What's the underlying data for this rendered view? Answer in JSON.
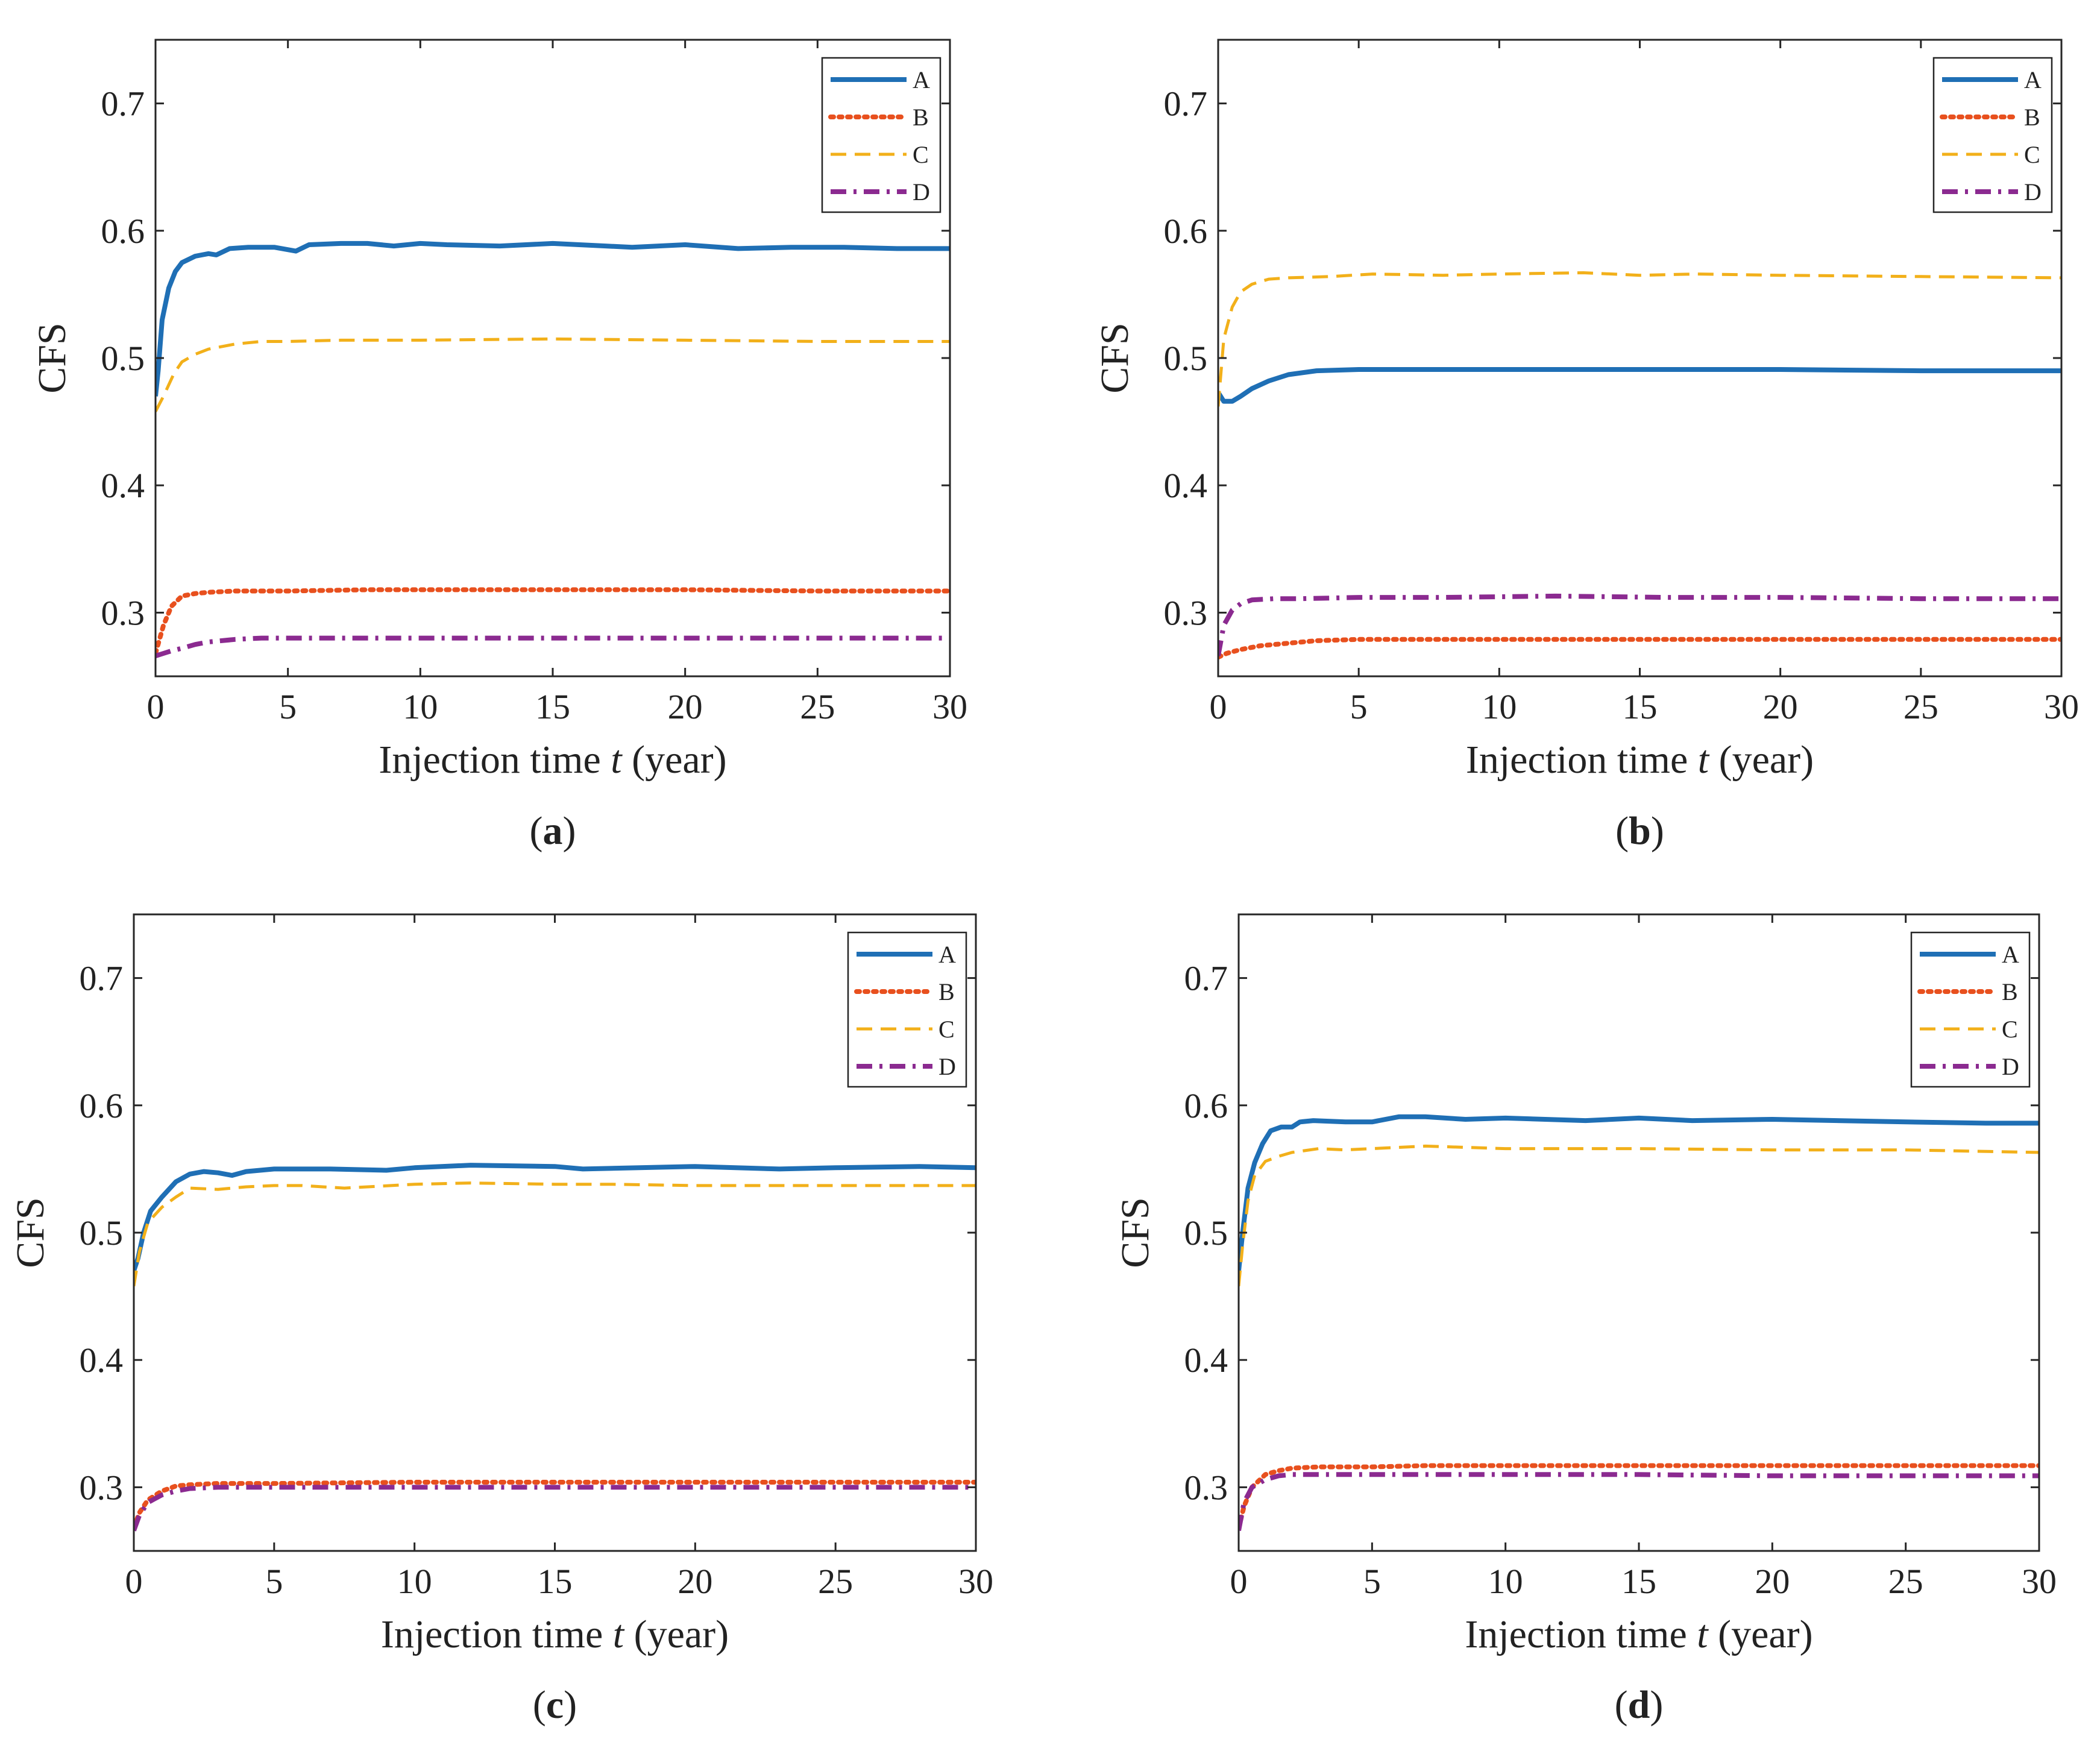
{
  "chart_data": [
    {
      "type": "line",
      "panel_label": "a",
      "xlabel_prefix": "Injection time ",
      "xlabel_var": "t",
      "xlabel_suffix": "  (year)",
      "ylabel": "CFS",
      "xlim": [
        0,
        30
      ],
      "ylim": [
        0.25,
        0.75
      ],
      "xticks": [
        0,
        5,
        10,
        15,
        20,
        25,
        30
      ],
      "yticks": [
        0.3,
        0.4,
        0.5,
        0.6,
        0.7
      ],
      "xtick_labels": [
        "0",
        "5",
        "10",
        "15",
        "20",
        "25",
        "30"
      ],
      "ytick_labels": [
        "0.3",
        "0.4",
        "0.5",
        "0.6",
        "0.7"
      ],
      "legend": "top-right",
      "series": [
        {
          "name": "A",
          "color": "#1f6fb5",
          "style": "solid",
          "x": [
            0,
            0.1,
            0.25,
            0.5,
            0.75,
            1.0,
            1.5,
            2.0,
            2.3,
            2.8,
            3.5,
            4.5,
            5.3,
            5.8,
            7.0,
            8.0,
            9.0,
            10.0,
            11.0,
            13.0,
            15.0,
            17.0,
            18.0,
            20.0,
            22.0,
            24.0,
            26.0,
            28.0,
            30.0
          ],
          "y": [
            0.47,
            0.49,
            0.53,
            0.555,
            0.568,
            0.575,
            0.58,
            0.582,
            0.581,
            0.586,
            0.587,
            0.587,
            0.584,
            0.589,
            0.59,
            0.59,
            0.588,
            0.59,
            0.589,
            0.588,
            0.59,
            0.588,
            0.587,
            0.589,
            0.586,
            0.587,
            0.587,
            0.586,
            0.586
          ]
        },
        {
          "name": "B",
          "color": "#e8501e",
          "style": "dotted",
          "x": [
            0,
            0.3,
            0.6,
            1.0,
            1.5,
            2.0,
            3.0,
            5.0,
            8.0,
            12.0,
            16.0,
            20.0,
            25.0,
            30.0
          ],
          "y": [
            0.268,
            0.29,
            0.305,
            0.313,
            0.315,
            0.316,
            0.317,
            0.317,
            0.318,
            0.318,
            0.318,
            0.318,
            0.317,
            0.317
          ]
        },
        {
          "name": "C",
          "color": "#f2b01a",
          "style": "dashed",
          "x": [
            0,
            0.3,
            0.7,
            1.0,
            1.5,
            2.0,
            3.0,
            4.0,
            5.0,
            7.0,
            10.0,
            15.0,
            20.0,
            25.0,
            28.0,
            30.0
          ],
          "y": [
            0.458,
            0.47,
            0.488,
            0.497,
            0.503,
            0.507,
            0.511,
            0.513,
            0.513,
            0.514,
            0.514,
            0.515,
            0.514,
            0.513,
            0.513,
            0.513
          ]
        },
        {
          "name": "D",
          "color": "#8b2a90",
          "style": "dashdot",
          "x": [
            0,
            0.3,
            0.6,
            1.0,
            1.5,
            2.0,
            3.0,
            4.0,
            5.0,
            10.0,
            15.0,
            20.0,
            25.0,
            30.0
          ],
          "y": [
            0.266,
            0.268,
            0.27,
            0.272,
            0.275,
            0.277,
            0.279,
            0.28,
            0.28,
            0.28,
            0.28,
            0.28,
            0.28,
            0.28
          ]
        }
      ]
    },
    {
      "type": "line",
      "panel_label": "b",
      "xlabel_prefix": "Injection time ",
      "xlabel_var": "t",
      "xlabel_suffix": "  (year)",
      "ylabel": "CFS",
      "xlim": [
        0,
        30
      ],
      "ylim": [
        0.25,
        0.75
      ],
      "xticks": [
        0,
        5,
        10,
        15,
        20,
        25,
        30
      ],
      "yticks": [
        0.3,
        0.4,
        0.5,
        0.6,
        0.7
      ],
      "xtick_labels": [
        "0",
        "5",
        "10",
        "15",
        "20",
        "25",
        "30"
      ],
      "ytick_labels": [
        "0.3",
        "0.4",
        "0.5",
        "0.6",
        "0.7"
      ],
      "legend": "top-right",
      "series": [
        {
          "name": "A",
          "color": "#1f6fb5",
          "style": "solid",
          "x": [
            0,
            0.2,
            0.5,
            0.8,
            1.2,
            1.8,
            2.5,
            3.5,
            5.0,
            8.0,
            12.0,
            16.0,
            20.0,
            25.0,
            30.0
          ],
          "y": [
            0.473,
            0.466,
            0.466,
            0.47,
            0.476,
            0.482,
            0.487,
            0.49,
            0.491,
            0.491,
            0.491,
            0.491,
            0.491,
            0.49,
            0.49
          ]
        },
        {
          "name": "B",
          "color": "#e8501e",
          "style": "dotted",
          "x": [
            0,
            0.3,
            0.8,
            1.5,
            2.5,
            3.5,
            5.0,
            10.0,
            15.0,
            20.0,
            25.0,
            30.0
          ],
          "y": [
            0.265,
            0.268,
            0.271,
            0.274,
            0.276,
            0.278,
            0.279,
            0.279,
            0.279,
            0.279,
            0.279,
            0.279
          ]
        },
        {
          "name": "C",
          "color": "#f2b01a",
          "style": "dashed",
          "x": [
            0,
            0.2,
            0.5,
            0.8,
            1.2,
            1.8,
            2.5,
            4.0,
            5.5,
            8.0,
            10.0,
            13.0,
            15.0,
            17.0,
            20.0,
            25.0,
            30.0
          ],
          "y": [
            0.462,
            0.515,
            0.54,
            0.552,
            0.558,
            0.562,
            0.563,
            0.564,
            0.566,
            0.565,
            0.566,
            0.567,
            0.565,
            0.566,
            0.565,
            0.564,
            0.563
          ]
        },
        {
          "name": "D",
          "color": "#8b2a90",
          "style": "dashdot",
          "x": [
            0,
            0.2,
            0.5,
            0.8,
            1.2,
            2.0,
            3.0,
            5.0,
            8.0,
            12.0,
            16.0,
            20.0,
            25.0,
            30.0
          ],
          "y": [
            0.266,
            0.29,
            0.302,
            0.307,
            0.31,
            0.311,
            0.311,
            0.312,
            0.312,
            0.313,
            0.312,
            0.312,
            0.311,
            0.311
          ]
        }
      ]
    },
    {
      "type": "line",
      "panel_label": "c",
      "xlabel_prefix": "Injection time ",
      "xlabel_var": "t",
      "xlabel_suffix": "  (year)",
      "ylabel": "CFS",
      "xlim": [
        0,
        30
      ],
      "ylim": [
        0.25,
        0.75
      ],
      "xticks": [
        0,
        5,
        10,
        15,
        20,
        25,
        30
      ],
      "yticks": [
        0.3,
        0.4,
        0.5,
        0.6,
        0.7
      ],
      "xtick_labels": [
        "0",
        "5",
        "10",
        "15",
        "20",
        "25",
        "30"
      ],
      "ytick_labels": [
        "0.3",
        "0.4",
        "0.5",
        "0.6",
        "0.7"
      ],
      "legend": "top-right",
      "series": [
        {
          "name": "A",
          "color": "#1f6fb5",
          "style": "solid",
          "x": [
            0,
            0.15,
            0.35,
            0.6,
            1.0,
            1.5,
            2.0,
            2.5,
            3.0,
            3.5,
            4.0,
            5.0,
            7.0,
            9.0,
            10.0,
            12.0,
            15.0,
            16.0,
            20.0,
            23.0,
            25.0,
            28.0,
            30.0
          ],
          "y": [
            0.47,
            0.48,
            0.5,
            0.517,
            0.528,
            0.54,
            0.546,
            0.548,
            0.547,
            0.545,
            0.548,
            0.55,
            0.55,
            0.549,
            0.551,
            0.553,
            0.552,
            0.55,
            0.552,
            0.55,
            0.551,
            0.552,
            0.551
          ]
        },
        {
          "name": "B",
          "color": "#e8501e",
          "style": "dotted",
          "x": [
            0,
            0.2,
            0.5,
            1.0,
            1.5,
            2.0,
            3.0,
            5.0,
            10.0,
            15.0,
            20.0,
            25.0,
            30.0
          ],
          "y": [
            0.268,
            0.28,
            0.29,
            0.297,
            0.301,
            0.302,
            0.303,
            0.303,
            0.304,
            0.304,
            0.304,
            0.304,
            0.304
          ]
        },
        {
          "name": "C",
          "color": "#f2b01a",
          "style": "dashed",
          "x": [
            0,
            0.2,
            0.5,
            1.0,
            1.5,
            2.0,
            3.0,
            4.0,
            5.0,
            6.0,
            7.5,
            10.0,
            12.0,
            15.0,
            17.0,
            20.0,
            25.0,
            30.0
          ],
          "y": [
            0.458,
            0.485,
            0.508,
            0.52,
            0.528,
            0.535,
            0.534,
            0.536,
            0.537,
            0.537,
            0.535,
            0.538,
            0.539,
            0.538,
            0.538,
            0.537,
            0.537,
            0.537
          ]
        },
        {
          "name": "D",
          "color": "#8b2a90",
          "style": "dashdot",
          "x": [
            0,
            0.2,
            0.5,
            1.0,
            1.5,
            2.0,
            3.0,
            5.0,
            10.0,
            15.0,
            20.0,
            25.0,
            30.0
          ],
          "y": [
            0.266,
            0.278,
            0.288,
            0.294,
            0.297,
            0.299,
            0.3,
            0.3,
            0.3,
            0.3,
            0.3,
            0.3,
            0.3
          ]
        }
      ]
    },
    {
      "type": "line",
      "panel_label": "d",
      "xlabel_prefix": "Injection time ",
      "xlabel_var": "t",
      "xlabel_suffix": "  (year)",
      "ylabel": "CFS",
      "xlim": [
        0,
        30
      ],
      "ylim": [
        0.25,
        0.75
      ],
      "xticks": [
        0,
        5,
        10,
        15,
        20,
        25,
        30
      ],
      "yticks": [
        0.3,
        0.4,
        0.5,
        0.6,
        0.7
      ],
      "xtick_labels": [
        "0",
        "5",
        "10",
        "15",
        "20",
        "25",
        "30"
      ],
      "ytick_labels": [
        "0.3",
        "0.4",
        "0.5",
        "0.6",
        "0.7"
      ],
      "legend": "top-right",
      "series": [
        {
          "name": "A",
          "color": "#1f6fb5",
          "style": "solid",
          "x": [
            0,
            0.15,
            0.35,
            0.6,
            0.9,
            1.2,
            1.6,
            2.0,
            2.3,
            2.8,
            4.0,
            5.0,
            6.0,
            7.0,
            8.5,
            10.0,
            13.0,
            15.0,
            17.0,
            20.0,
            25.0,
            28.0,
            30.0
          ],
          "y": [
            0.47,
            0.5,
            0.535,
            0.555,
            0.57,
            0.58,
            0.583,
            0.583,
            0.587,
            0.588,
            0.587,
            0.587,
            0.591,
            0.591,
            0.589,
            0.59,
            0.588,
            0.59,
            0.588,
            0.589,
            0.587,
            0.586,
            0.586
          ]
        },
        {
          "name": "B",
          "color": "#e8501e",
          "style": "dotted",
          "x": [
            0,
            0.2,
            0.5,
            1.0,
            1.5,
            2.0,
            3.0,
            5.0,
            7.0,
            10.0,
            15.0,
            20.0,
            25.0,
            30.0
          ],
          "y": [
            0.268,
            0.285,
            0.3,
            0.31,
            0.313,
            0.315,
            0.316,
            0.316,
            0.317,
            0.317,
            0.317,
            0.317,
            0.317,
            0.317
          ]
        },
        {
          "name": "C",
          "color": "#f2b01a",
          "style": "dashed",
          "x": [
            0,
            0.15,
            0.35,
            0.6,
            1.0,
            1.5,
            2.0,
            3.0,
            4.0,
            5.0,
            7.0,
            10.0,
            15.0,
            20.0,
            25.0,
            30.0
          ],
          "y": [
            0.458,
            0.49,
            0.525,
            0.545,
            0.556,
            0.56,
            0.563,
            0.566,
            0.565,
            0.566,
            0.568,
            0.566,
            0.566,
            0.565,
            0.565,
            0.563
          ]
        },
        {
          "name": "D",
          "color": "#8b2a90",
          "style": "dashdot",
          "x": [
            0,
            0.2,
            0.5,
            1.0,
            1.5,
            2.0,
            3.0,
            5.0,
            7.0,
            10.0,
            15.0,
            20.0,
            25.0,
            30.0
          ],
          "y": [
            0.266,
            0.288,
            0.3,
            0.306,
            0.309,
            0.31,
            0.31,
            0.31,
            0.31,
            0.31,
            0.31,
            0.309,
            0.309,
            0.309
          ]
        }
      ]
    }
  ]
}
